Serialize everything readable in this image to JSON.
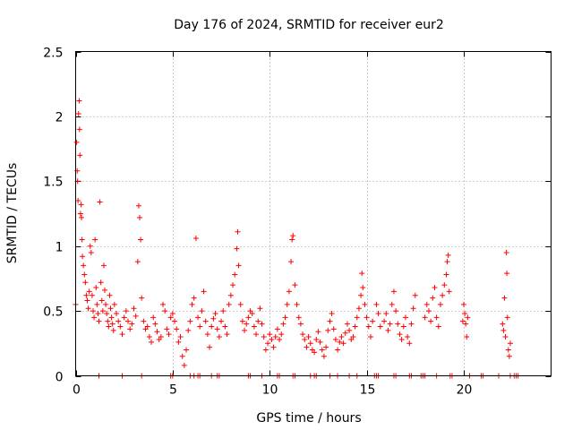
{
  "chart_data": {
    "type": "scatter",
    "title": "Day 176 of 2024, SRMTID for receiver eur2",
    "xlabel": "GPS time / hours",
    "ylabel": "SRMTID / TECUs",
    "xlim": [
      0,
      24.5
    ],
    "ylim": [
      0,
      2.5
    ],
    "xticks": [
      0,
      5,
      10,
      15,
      20
    ],
    "xtick_labels": [
      "0",
      "5",
      "10",
      "15",
      "20"
    ],
    "yticks": [
      0,
      0.5,
      1,
      1.5,
      2,
      2.5
    ],
    "ytick_labels": [
      "0",
      "0.5",
      "1",
      "1.5",
      "2",
      "2.5"
    ],
    "grid": true,
    "marker": "+",
    "color": "#ff0000",
    "series": [
      {
        "name": "SRMTID",
        "points": [
          [
            0.0,
            0.55
          ],
          [
            0.05,
            1.8
          ],
          [
            0.08,
            1.58
          ],
          [
            0.1,
            1.5
          ],
          [
            0.12,
            1.35
          ],
          [
            0.15,
            2.02
          ],
          [
            0.18,
            2.12
          ],
          [
            0.2,
            1.9
          ],
          [
            0.22,
            1.7
          ],
          [
            0.25,
            1.25
          ],
          [
            0.28,
            1.32
          ],
          [
            0.3,
            1.22
          ],
          [
            0.33,
            1.05
          ],
          [
            0.35,
            0.92
          ],
          [
            0.4,
            0.85
          ],
          [
            0.45,
            0.78
          ],
          [
            0.5,
            0.72
          ],
          [
            0.55,
            0.62
          ],
          [
            0.6,
            0.58
          ],
          [
            0.65,
            0.52
          ],
          [
            0.7,
            0.65
          ],
          [
            0.75,
            1.0
          ],
          [
            0.8,
            0.95
          ],
          [
            0.85,
            0.62
          ],
          [
            0.9,
            0.5
          ],
          [
            0.95,
            0.45
          ],
          [
            1.0,
            1.05
          ],
          [
            1.05,
            0.68
          ],
          [
            1.1,
            0.55
          ],
          [
            1.15,
            0.48
          ],
          [
            1.2,
            0.42
          ],
          [
            1.25,
            1.34
          ],
          [
            1.3,
            0.72
          ],
          [
            1.35,
            0.58
          ],
          [
            1.4,
            0.5
          ],
          [
            1.45,
            0.85
          ],
          [
            1.5,
            0.66
          ],
          [
            1.55,
            0.55
          ],
          [
            1.6,
            0.48
          ],
          [
            1.65,
            0.42
          ],
          [
            1.7,
            0.38
          ],
          [
            1.75,
            0.62
          ],
          [
            1.8,
            0.52
          ],
          [
            1.85,
            0.45
          ],
          [
            1.9,
            0.4
          ],
          [
            1.95,
            0.35
          ],
          [
            2.0,
            0.55
          ],
          [
            2.1,
            0.48
          ],
          [
            2.2,
            0.42
          ],
          [
            2.3,
            0.38
          ],
          [
            2.4,
            0.32
          ],
          [
            2.5,
            0.45
          ],
          [
            2.6,
            0.5
          ],
          [
            2.7,
            0.42
          ],
          [
            2.8,
            0.36
          ],
          [
            2.9,
            0.4
          ],
          [
            3.0,
            0.52
          ],
          [
            3.1,
            0.46
          ],
          [
            3.2,
            0.88
          ],
          [
            3.25,
            1.31
          ],
          [
            3.3,
            1.22
          ],
          [
            3.35,
            1.05
          ],
          [
            3.4,
            0.6
          ],
          [
            3.5,
            0.42
          ],
          [
            3.6,
            0.36
          ],
          [
            3.7,
            0.38
          ],
          [
            3.8,
            0.3
          ],
          [
            3.9,
            0.26
          ],
          [
            4.0,
            0.45
          ],
          [
            4.1,
            0.4
          ],
          [
            4.2,
            0.34
          ],
          [
            4.3,
            0.28
          ],
          [
            4.4,
            0.3
          ],
          [
            4.5,
            0.55
          ],
          [
            4.6,
            0.5
          ],
          [
            4.7,
            0.36
          ],
          [
            4.8,
            0.32
          ],
          [
            4.9,
            0.45
          ],
          [
            5.0,
            0.48
          ],
          [
            5.1,
            0.42
          ],
          [
            5.2,
            0.36
          ],
          [
            5.3,
            0.26
          ],
          [
            5.4,
            0.3
          ],
          [
            5.5,
            0.15
          ],
          [
            5.6,
            0.08
          ],
          [
            5.7,
            0.2
          ],
          [
            5.8,
            0.35
          ],
          [
            5.9,
            0.42
          ],
          [
            6.0,
            0.55
          ],
          [
            6.1,
            0.6
          ],
          [
            6.2,
            1.06
          ],
          [
            6.3,
            0.45
          ],
          [
            6.4,
            0.38
          ],
          [
            6.5,
            0.5
          ],
          [
            6.6,
            0.65
          ],
          [
            6.7,
            0.42
          ],
          [
            6.8,
            0.32
          ],
          [
            6.9,
            0.22
          ],
          [
            7.0,
            0.38
          ],
          [
            7.1,
            0.44
          ],
          [
            7.2,
            0.48
          ],
          [
            7.3,
            0.36
          ],
          [
            7.4,
            0.3
          ],
          [
            7.5,
            0.42
          ],
          [
            7.6,
            0.5
          ],
          [
            7.7,
            0.38
          ],
          [
            7.8,
            0.32
          ],
          [
            7.9,
            0.55
          ],
          [
            8.0,
            0.62
          ],
          [
            8.1,
            0.7
          ],
          [
            8.2,
            0.78
          ],
          [
            8.3,
            0.98
          ],
          [
            8.35,
            1.11
          ],
          [
            8.4,
            0.85
          ],
          [
            8.5,
            0.55
          ],
          [
            8.6,
            0.42
          ],
          [
            8.7,
            0.35
          ],
          [
            8.8,
            0.4
          ],
          [
            8.9,
            0.45
          ],
          [
            9.0,
            0.5
          ],
          [
            9.1,
            0.48
          ],
          [
            9.2,
            0.38
          ],
          [
            9.3,
            0.32
          ],
          [
            9.4,
            0.42
          ],
          [
            9.5,
            0.52
          ],
          [
            9.6,
            0.4
          ],
          [
            9.7,
            0.3
          ],
          [
            9.8,
            0.2
          ],
          [
            9.9,
            0.25
          ],
          [
            10.0,
            0.32
          ],
          [
            10.1,
            0.28
          ],
          [
            10.2,
            0.22
          ],
          [
            10.3,
            0.3
          ],
          [
            10.4,
            0.36
          ],
          [
            10.5,
            0.28
          ],
          [
            10.6,
            0.32
          ],
          [
            10.7,
            0.4
          ],
          [
            10.8,
            0.45
          ],
          [
            10.9,
            0.55
          ],
          [
            11.0,
            0.65
          ],
          [
            11.1,
            0.88
          ],
          [
            11.15,
            1.05
          ],
          [
            11.2,
            1.08
          ],
          [
            11.3,
            0.7
          ],
          [
            11.4,
            0.55
          ],
          [
            11.5,
            0.45
          ],
          [
            11.6,
            0.4
          ],
          [
            11.7,
            0.32
          ],
          [
            11.8,
            0.28
          ],
          [
            11.9,
            0.22
          ],
          [
            12.0,
            0.3
          ],
          [
            12.1,
            0.25
          ],
          [
            12.2,
            0.2
          ],
          [
            12.3,
            0.18
          ],
          [
            12.4,
            0.28
          ],
          [
            12.5,
            0.34
          ],
          [
            12.6,
            0.26
          ],
          [
            12.7,
            0.2
          ],
          [
            12.8,
            0.15
          ],
          [
            12.9,
            0.22
          ],
          [
            13.0,
            0.35
          ],
          [
            13.1,
            0.42
          ],
          [
            13.2,
            0.48
          ],
          [
            13.3,
            0.36
          ],
          [
            13.4,
            0.28
          ],
          [
            13.5,
            0.2
          ],
          [
            13.6,
            0.26
          ],
          [
            13.7,
            0.3
          ],
          [
            13.8,
            0.25
          ],
          [
            13.9,
            0.33
          ],
          [
            14.0,
            0.4
          ],
          [
            14.1,
            0.35
          ],
          [
            14.2,
            0.28
          ],
          [
            14.3,
            0.3
          ],
          [
            14.4,
            0.38
          ],
          [
            14.5,
            0.45
          ],
          [
            14.6,
            0.52
          ],
          [
            14.7,
            0.62
          ],
          [
            14.75,
            0.79
          ],
          [
            14.8,
            0.68
          ],
          [
            14.9,
            0.55
          ],
          [
            15.0,
            0.45
          ],
          [
            15.1,
            0.38
          ],
          [
            15.2,
            0.3
          ],
          [
            15.3,
            0.42
          ],
          [
            15.5,
            0.55
          ],
          [
            15.6,
            0.48
          ],
          [
            15.7,
            0.38
          ],
          [
            15.9,
            0.42
          ],
          [
            16.0,
            0.48
          ],
          [
            16.1,
            0.35
          ],
          [
            16.2,
            0.4
          ],
          [
            16.3,
            0.55
          ],
          [
            16.4,
            0.65
          ],
          [
            16.5,
            0.5
          ],
          [
            16.6,
            0.4
          ],
          [
            16.7,
            0.32
          ],
          [
            16.8,
            0.28
          ],
          [
            16.9,
            0.38
          ],
          [
            17.0,
            0.45
          ],
          [
            17.1,
            0.3
          ],
          [
            17.2,
            0.25
          ],
          [
            17.3,
            0.4
          ],
          [
            17.4,
            0.52
          ],
          [
            17.5,
            0.62
          ],
          [
            18.0,
            0.45
          ],
          [
            18.1,
            0.55
          ],
          [
            18.2,
            0.5
          ],
          [
            18.3,
            0.42
          ],
          [
            18.4,
            0.6
          ],
          [
            18.5,
            0.68
          ],
          [
            18.6,
            0.45
          ],
          [
            18.7,
            0.38
          ],
          [
            18.8,
            0.55
          ],
          [
            18.9,
            0.62
          ],
          [
            19.0,
            0.7
          ],
          [
            19.1,
            0.78
          ],
          [
            19.15,
            0.88
          ],
          [
            19.2,
            0.93
          ],
          [
            19.25,
            0.65
          ],
          [
            19.95,
            0.42
          ],
          [
            20.0,
            0.55
          ],
          [
            20.05,
            0.48
          ],
          [
            20.1,
            0.4
          ],
          [
            20.15,
            0.3
          ],
          [
            20.2,
            0.45
          ],
          [
            22.0,
            0.4
          ],
          [
            22.05,
            0.35
          ],
          [
            22.1,
            0.6
          ],
          [
            22.15,
            0.3
          ],
          [
            22.2,
            0.95
          ],
          [
            22.22,
            0.79
          ],
          [
            22.25,
            0.45
          ],
          [
            22.3,
            0.2
          ],
          [
            22.35,
            0.15
          ],
          [
            22.4,
            0.25
          ],
          [
            1.2,
            0.0
          ],
          [
            2.4,
            0.0
          ],
          [
            3.4,
            0.0
          ],
          [
            4.9,
            0.0
          ],
          [
            5.0,
            0.0
          ],
          [
            5.9,
            0.0
          ],
          [
            6.1,
            0.0
          ],
          [
            6.3,
            0.0
          ],
          [
            6.4,
            0.0
          ],
          [
            7.0,
            0.0
          ],
          [
            7.3,
            0.0
          ],
          [
            7.4,
            0.0
          ],
          [
            8.9,
            0.0
          ],
          [
            9.0,
            0.0
          ],
          [
            9.6,
            0.0
          ],
          [
            10.4,
            0.0
          ],
          [
            10.5,
            0.0
          ],
          [
            11.2,
            0.0
          ],
          [
            11.3,
            0.0
          ],
          [
            12.1,
            0.0
          ],
          [
            12.3,
            0.0
          ],
          [
            12.4,
            0.0
          ],
          [
            13.1,
            0.0
          ],
          [
            13.5,
            0.0
          ],
          [
            14.1,
            0.0
          ],
          [
            14.5,
            0.0
          ],
          [
            15.4,
            0.0
          ],
          [
            15.5,
            0.0
          ],
          [
            15.6,
            0.0
          ],
          [
            16.4,
            0.0
          ],
          [
            16.5,
            0.0
          ],
          [
            17.2,
            0.0
          ],
          [
            17.3,
            0.0
          ],
          [
            17.8,
            0.0
          ],
          [
            17.9,
            0.0
          ],
          [
            18.0,
            0.0
          ],
          [
            18.6,
            0.0
          ],
          [
            19.3,
            0.0
          ],
          [
            19.4,
            0.0
          ],
          [
            20.3,
            0.0
          ],
          [
            20.9,
            0.0
          ],
          [
            21.0,
            0.0
          ],
          [
            21.8,
            0.0
          ],
          [
            22.4,
            0.0
          ],
          [
            22.6,
            0.0
          ],
          [
            22.7,
            0.0
          ],
          [
            22.8,
            0.0
          ]
        ]
      }
    ]
  }
}
